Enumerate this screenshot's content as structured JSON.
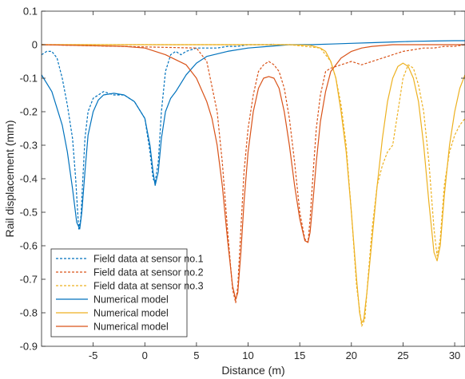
{
  "chart_data": {
    "type": "line",
    "title": "",
    "xlabel": "Distance (m)",
    "ylabel": "Rail displacement (mm)",
    "xlim": [
      -10,
      31
    ],
    "ylim": [
      -0.9,
      0.1
    ],
    "xticks": [
      -5,
      0,
      5,
      10,
      15,
      20,
      25,
      30
    ],
    "xtick_labels": [
      "-5",
      "0",
      "5",
      "10",
      "15",
      "20",
      "25",
      "30"
    ],
    "yticks": [
      0.1,
      0,
      -0.1,
      -0.2,
      -0.3,
      -0.4,
      -0.5,
      -0.6,
      -0.7,
      -0.8,
      -0.9
    ],
    "ytick_labels": [
      "0.1",
      "0",
      "-0.1",
      "-0.2",
      "-0.3",
      "-0.4",
      "-0.5",
      "-0.6",
      "-0.7",
      "-0.8",
      "-0.9"
    ],
    "grid": false,
    "legend_position": "bottom-left",
    "series": [
      {
        "name": "Field data at sensor no.1",
        "color": "#0072BD",
        "style": "dashed",
        "x": [
          -10,
          -9.5,
          -9,
          -8.5,
          -8,
          -7.5,
          -7,
          -6.7,
          -6.4,
          -6.2,
          -6,
          -5.8,
          -5.5,
          -5,
          -4,
          -3,
          -2,
          -1,
          0,
          0.5,
          0.8,
          1,
          1.3,
          1.6,
          2,
          2.5,
          3,
          3.5,
          4,
          5,
          6,
          7,
          8,
          9,
          10,
          11,
          12,
          12.5
        ],
        "y": [
          -0.03,
          -0.02,
          -0.02,
          -0.04,
          -0.1,
          -0.18,
          -0.28,
          -0.4,
          -0.55,
          -0.52,
          -0.4,
          -0.28,
          -0.2,
          -0.16,
          -0.14,
          -0.15,
          -0.15,
          -0.17,
          -0.22,
          -0.32,
          -0.4,
          -0.41,
          -0.35,
          -0.2,
          -0.08,
          -0.03,
          -0.02,
          -0.03,
          -0.02,
          -0.01,
          -0.01,
          -0.01,
          -0.005,
          -0.005,
          0,
          0,
          0,
          0.002
        ]
      },
      {
        "name": "Field data at sensor no.2",
        "color": "#D95319",
        "style": "dashed",
        "x": [
          -10,
          5,
          6,
          7,
          7.5,
          8,
          8.5,
          8.8,
          9,
          9.3,
          9.6,
          10,
          10.5,
          11,
          11.5,
          12,
          12.5,
          13,
          13.5,
          14,
          14.5,
          15,
          15.5,
          15.8,
          16,
          16.3,
          16.6,
          17,
          17.5,
          18,
          19,
          20,
          21,
          22,
          23,
          24,
          25,
          26,
          27,
          28,
          29,
          30,
          31
        ],
        "y": [
          0,
          -0.01,
          -0.05,
          -0.2,
          -0.35,
          -0.55,
          -0.73,
          -0.77,
          -0.72,
          -0.55,
          -0.38,
          -0.25,
          -0.15,
          -0.08,
          -0.06,
          -0.05,
          -0.06,
          -0.08,
          -0.13,
          -0.22,
          -0.35,
          -0.5,
          -0.58,
          -0.59,
          -0.52,
          -0.38,
          -0.25,
          -0.15,
          -0.08,
          -0.07,
          -0.06,
          -0.05,
          -0.06,
          -0.05,
          -0.04,
          -0.03,
          -0.02,
          -0.015,
          -0.01,
          -0.01,
          -0.005,
          -0.005,
          0
        ]
      },
      {
        "name": "Field data at sensor no.3",
        "color": "#EDB120",
        "style": "dashed",
        "x": [
          -10,
          14,
          17,
          18,
          18.5,
          19,
          19.5,
          20,
          20.5,
          21,
          21.3,
          21.6,
          22,
          22.5,
          23,
          23.5,
          24,
          24.5,
          25,
          25.5,
          26,
          26.5,
          27,
          27.5,
          28,
          28.3,
          28.6,
          29,
          29.5,
          30,
          30.5,
          31
        ],
        "y": [
          0,
          0,
          -0.01,
          -0.05,
          -0.1,
          -0.18,
          -0.3,
          -0.5,
          -0.72,
          -0.84,
          -0.82,
          -0.7,
          -0.55,
          -0.42,
          -0.36,
          -0.32,
          -0.3,
          -0.2,
          -0.1,
          -0.06,
          -0.07,
          -0.12,
          -0.2,
          -0.35,
          -0.55,
          -0.63,
          -0.58,
          -0.42,
          -0.32,
          -0.27,
          -0.24,
          -0.22
        ]
      },
      {
        "name": "Numerical model",
        "color": "#0072BD",
        "style": "solid",
        "x": [
          -10,
          -9,
          -8,
          -7.5,
          -7,
          -6.6,
          -6.3,
          -6.1,
          -5.8,
          -5.5,
          -5,
          -4.5,
          -4,
          -3,
          -2,
          -1,
          0,
          0.5,
          0.8,
          1,
          1.3,
          1.6,
          2,
          2.5,
          3,
          4,
          5,
          6,
          8,
          10,
          12,
          14,
          16,
          18,
          20,
          22,
          24,
          26,
          28,
          30,
          31
        ],
        "y": [
          -0.09,
          -0.14,
          -0.24,
          -0.32,
          -0.43,
          -0.53,
          -0.55,
          -0.5,
          -0.38,
          -0.27,
          -0.2,
          -0.165,
          -0.15,
          -0.145,
          -0.15,
          -0.17,
          -0.22,
          -0.3,
          -0.38,
          -0.42,
          -0.38,
          -0.28,
          -0.2,
          -0.16,
          -0.14,
          -0.09,
          -0.055,
          -0.035,
          -0.02,
          -0.01,
          -0.005,
          0,
          0,
          0.002,
          0.004,
          0.006,
          0.008,
          0.01,
          0.011,
          0.012,
          0.012
        ]
      },
      {
        "name": "Numerical model",
        "color": "#EDB120",
        "style": "solid",
        "x": [
          -10,
          14,
          16,
          17,
          17.5,
          18,
          18.5,
          19,
          19.5,
          20,
          20.5,
          20.8,
          21,
          21.2,
          21.5,
          22,
          22.5,
          23,
          23.5,
          24,
          24.5,
          25,
          25.5,
          26,
          26.5,
          27,
          27.5,
          28,
          28.3,
          28.6,
          29,
          29.5,
          30,
          30.5,
          31
        ],
        "y": [
          0,
          0,
          -0.002,
          -0.01,
          -0.02,
          -0.05,
          -0.1,
          -0.2,
          -0.32,
          -0.5,
          -0.7,
          -0.8,
          -0.83,
          -0.82,
          -0.74,
          -0.58,
          -0.42,
          -0.28,
          -0.17,
          -0.1,
          -0.065,
          -0.055,
          -0.065,
          -0.1,
          -0.17,
          -0.3,
          -0.47,
          -0.62,
          -0.645,
          -0.6,
          -0.45,
          -0.3,
          -0.2,
          -0.13,
          -0.09
        ]
      },
      {
        "name": "Numerical model",
        "color": "#D95319",
        "style": "solid",
        "x": [
          -10,
          -2,
          0,
          2,
          4,
          5,
          6,
          6.5,
          7,
          7.5,
          8,
          8.5,
          8.8,
          9,
          9.3,
          9.6,
          10,
          10.5,
          11,
          11.5,
          12,
          12.5,
          13,
          13.5,
          14,
          14.5,
          15,
          15.5,
          15.8,
          16,
          16.3,
          16.6,
          17,
          17.5,
          18,
          19,
          20,
          21,
          22,
          24,
          26,
          28,
          30,
          31
        ],
        "y": [
          0,
          -0.005,
          -0.01,
          -0.03,
          -0.06,
          -0.1,
          -0.17,
          -0.22,
          -0.3,
          -0.42,
          -0.58,
          -0.72,
          -0.76,
          -0.74,
          -0.62,
          -0.47,
          -0.32,
          -0.2,
          -0.13,
          -0.1,
          -0.095,
          -0.1,
          -0.13,
          -0.2,
          -0.3,
          -0.42,
          -0.52,
          -0.585,
          -0.59,
          -0.56,
          -0.46,
          -0.35,
          -0.23,
          -0.14,
          -0.08,
          -0.04,
          -0.02,
          -0.01,
          -0.005,
          0,
          0,
          0,
          0,
          0
        ]
      }
    ]
  }
}
